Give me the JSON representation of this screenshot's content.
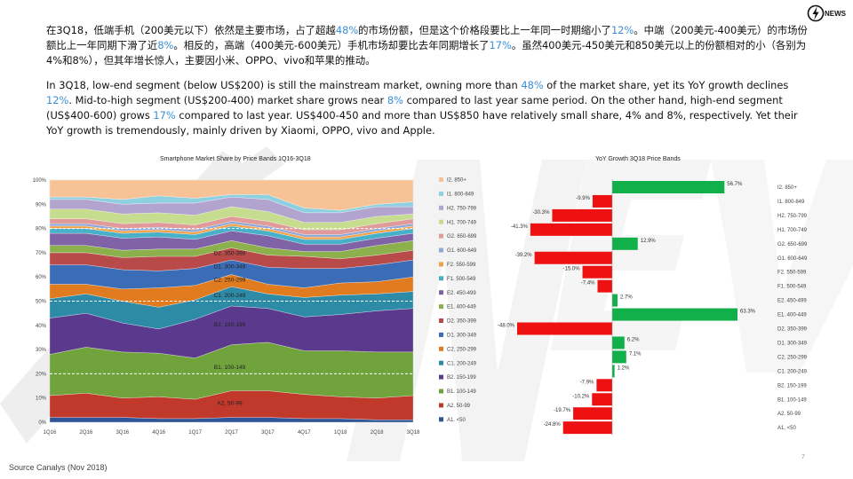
{
  "brand": {
    "logo_text": "NEWS",
    "icon": "lightning-bolt-icon"
  },
  "text_cn": [
    {
      "t": "在3Q18，低端手机（200美元以下）依然是主要市场，占了超越"
    },
    {
      "t": "48%",
      "hl": true
    },
    {
      "t": "的市场份额，但是这个价格段要比上一年同一时期缩小了"
    },
    {
      "t": "12%",
      "hl": true
    },
    {
      "t": "。中端（200美元-400美元）的市场份额比上一年同期下滑了近"
    },
    {
      "t": "8%",
      "hl": true
    },
    {
      "t": "。相反的，高端（400美元-600美元）手机市场却要比去年同期增长了"
    },
    {
      "t": "17%",
      "hl": true
    },
    {
      "t": "。虽然400美元-450美元和850美元以上的份额相对的小（各别为4%和8%），但其年增长惊人，主要因小米、OPPO、vivo和苹果的推动。"
    }
  ],
  "text_en": [
    {
      "t": "In 3Q18, low-end segment (below US$200) is still the mainstream market, owning more than "
    },
    {
      "t": "48%",
      "hl": true
    },
    {
      "t": " of the market share, yet its YoY growth declines "
    },
    {
      "t": "12%",
      "hl": true
    },
    {
      "t": ". Mid-to-high segment (US$200-400) market share grows near "
    },
    {
      "t": "8%",
      "hl": true
    },
    {
      "t": " compared to last year same period. On the other hand, high-end segment (US$400-600) grows "
    },
    {
      "t": "17%",
      "hl": true
    },
    {
      "t": " compared to last year. US$400-450 and more than US$850 have relatively small share, 4% and 8%, respectively. Yet their YoY growth is tremendously, mainly driven by Xiaomi, OPPO, vivo and Apple."
    }
  ],
  "accent_color": "#3a8ed6",
  "source": "Source Canalys (Nov 2018)",
  "page_number": "7",
  "chart_data": [
    {
      "type": "area",
      "stacked": true,
      "title": "Smartphone Market Share by Price Bands 1Q16-3Q18",
      "categories": [
        "1Q16",
        "2Q16",
        "3Q16",
        "4Q16",
        "1Q17",
        "2Q17",
        "3Q17",
        "4Q17",
        "1Q18",
        "2Q18",
        "3Q18"
      ],
      "ylim": [
        0,
        100
      ],
      "yticks": [
        "0%",
        "10%",
        "20%",
        "30%",
        "40%",
        "50%",
        "60%",
        "70%",
        "80%",
        "90%",
        "100%"
      ],
      "legend": "right",
      "series": [
        {
          "name": "A1. <50",
          "color": "#2f5597",
          "values": [
            2,
            2,
            2,
            1.5,
            1.5,
            2,
            2,
            1.5,
            1.5,
            1,
            1
          ]
        },
        {
          "name": "A2. 50-99",
          "color": "#c0392b",
          "values": [
            9,
            10,
            8,
            9,
            8,
            11,
            11,
            10,
            9,
            9,
            10
          ]
        },
        {
          "name": "B1. 100-149",
          "color": "#70a33c",
          "values": [
            17,
            19,
            19,
            18,
            17,
            19,
            20,
            18,
            19,
            19,
            18
          ]
        },
        {
          "name": "B2. 150-199",
          "color": "#5b3a8e",
          "values": [
            15,
            14,
            12,
            10,
            16,
            16,
            14,
            14,
            15,
            17,
            18
          ]
        },
        {
          "name": "C1. 200-249",
          "color": "#2e8ba7",
          "values": [
            8,
            8,
            9,
            9,
            8,
            8,
            6,
            8,
            8,
            7,
            7
          ]
        },
        {
          "name": "C2. 250-299",
          "color": "#e07b20",
          "values": [
            6,
            4,
            5,
            8,
            6,
            5,
            4,
            4,
            5,
            5,
            6
          ]
        },
        {
          "name": "D1. 300-349",
          "color": "#3a6db5",
          "values": [
            8,
            8,
            8,
            7,
            7,
            6,
            7,
            8,
            6,
            7,
            7
          ]
        },
        {
          "name": "D2. 350-399",
          "color": "#b84a4a",
          "values": [
            5,
            5,
            5,
            6,
            5,
            5,
            5,
            5,
            4,
            4,
            4
          ]
        },
        {
          "name": "E1. 400-449",
          "color": "#8cb04c",
          "values": [
            3,
            3,
            3,
            3,
            3,
            3,
            3,
            2,
            3,
            4,
            4
          ]
        },
        {
          "name": "E2. 450-499",
          "color": "#8062a6",
          "values": [
            5,
            5,
            5,
            5,
            4,
            4,
            5,
            3,
            3,
            3,
            3
          ]
        },
        {
          "name": "F1. 500-549",
          "color": "#48b0c9",
          "values": [
            2,
            2,
            2,
            2,
            2,
            2,
            2,
            2,
            2,
            2,
            2
          ]
        },
        {
          "name": "F2. 550-599",
          "color": "#f2a348",
          "values": [
            1,
            1,
            1,
            1,
            1,
            1,
            1,
            1,
            1,
            1,
            1
          ]
        },
        {
          "name": "G1. 600-649",
          "color": "#8fa8d8",
          "values": [
            1,
            1,
            1,
            1,
            1,
            1,
            1,
            1,
            1,
            1,
            1
          ]
        },
        {
          "name": "G2. 650-699",
          "color": "#e09a9a",
          "values": [
            2,
            2,
            2,
            2,
            2,
            2,
            2,
            2,
            2,
            2,
            2
          ]
        },
        {
          "name": "H1. 700-749",
          "color": "#c6dc8e",
          "values": [
            4,
            4,
            4,
            4,
            4,
            4,
            4,
            3,
            3,
            3,
            2
          ]
        },
        {
          "name": "H2. 750-799",
          "color": "#b3a3cf",
          "values": [
            4,
            4,
            4,
            4,
            5,
            4,
            5,
            4,
            4,
            4,
            3
          ]
        },
        {
          "name": "I1. 800-849",
          "color": "#8fd0e0",
          "values": [
            1,
            1,
            2,
            3,
            2,
            1,
            2,
            2,
            1,
            1,
            2
          ]
        },
        {
          "name": "I2. 850+",
          "color": "#f7c396",
          "values": [
            7,
            7,
            8,
            6.5,
            7.5,
            6,
            6,
            11.5,
            12.5,
            10,
            9
          ]
        }
      ],
      "segment_labels": [
        {
          "text": "A2. 50-99",
          "series": 1
        },
        {
          "text": "B1. 100-149",
          "series": 2
        },
        {
          "text": "B2. 150-199",
          "series": 3
        },
        {
          "text": "C1. 200-249",
          "series": 4
        },
        {
          "text": "C2. 250-299",
          "series": 5
        },
        {
          "text": "D1. 300-349",
          "series": 6
        },
        {
          "text": "D2. 350-399",
          "series": 7
        }
      ],
      "reference_lines": [
        20,
        50,
        80
      ]
    },
    {
      "type": "bar",
      "orientation": "horizontal",
      "title": "YoY Growth 3Q18 Price Bands",
      "categories": [
        "I2. 850+",
        "I1. 800-849",
        "H2. 750-799",
        "H1. 700-749",
        "G2. 650-699",
        "G1. 600-649",
        "F2. 550-599",
        "F1. 500-549",
        "E2. 450-499",
        "E1. 400-449",
        "D2. 350-399",
        "D1. 300-349",
        "C2. 250-299",
        "C1. 200-249",
        "B2. 150-199",
        "B1. 100-149",
        "A2. 50-99",
        "A1. <50"
      ],
      "values": [
        56.7,
        -9.9,
        -30.3,
        -41.3,
        12.9,
        -39.2,
        -15.0,
        -7.4,
        2.7,
        63.3,
        -48.0,
        6.2,
        7.1,
        1.2,
        -7.9,
        -10.2,
        -19.7,
        -24.8
      ],
      "labels": [
        "56.7%",
        "-9.9%",
        "-30.3%",
        "-41.3%",
        "12.9%",
        "-39.2%",
        "-15.0%",
        "-7.4%",
        "2.7%",
        "63.3%",
        "-48.0%",
        "6.2%",
        "7.1%",
        "1.2%",
        "-7.9%",
        "-10.2%",
        "-19.7%",
        "-24.8%"
      ],
      "positive_color": "#12b04a",
      "negative_color": "#ee1111",
      "xlim": [
        -50,
        65
      ]
    }
  ]
}
